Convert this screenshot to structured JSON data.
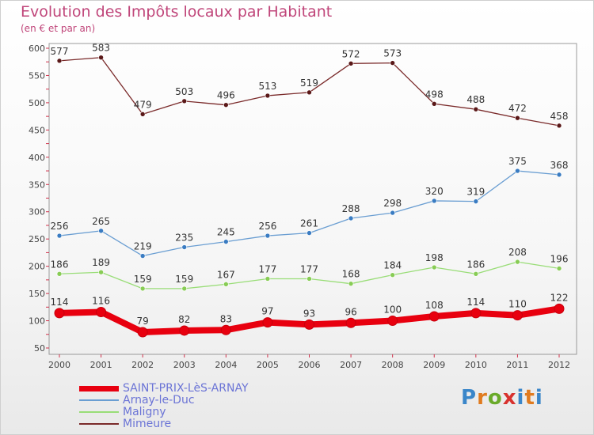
{
  "title": "Evolution des Impôts locaux par Habitant",
  "subtitle": "(en € et par an)",
  "brand": {
    "text": "Proxiti",
    "letter_colors": [
      "#3a86c9",
      "#e07b1f",
      "#6aaa2a",
      "#d8322e",
      "#3a86c9",
      "#e07b1f",
      "#3a86c9"
    ]
  },
  "chart_data": {
    "type": "line",
    "title": "Evolution des Impôts locaux par Habitant",
    "subtitle": "(en € et par an)",
    "x": [
      "2000",
      "2001",
      "2002",
      "2003",
      "2004",
      "2005",
      "2006",
      "2007",
      "2008",
      "2009",
      "2010",
      "2011",
      "2012"
    ],
    "y_ticks": [
      50,
      100,
      150,
      200,
      250,
      300,
      350,
      400,
      450,
      500,
      550,
      600
    ],
    "ylim": [
      50,
      600
    ],
    "grid": false,
    "legend_position": "bottom-left",
    "series": [
      {
        "name": "SAINT-PRIX-LèS-ARNAY",
        "color": "#e8000f",
        "values": [
          114,
          116,
          79,
          82,
          83,
          97,
          93,
          96,
          100,
          108,
          114,
          110,
          122
        ]
      },
      {
        "name": "Arnay-le-Duc",
        "color": "#6a9ed2",
        "values": [
          256,
          265,
          219,
          235,
          245,
          256,
          261,
          288,
          298,
          320,
          319,
          375,
          368
        ]
      },
      {
        "name": "Maligny",
        "color": "#99dd77",
        "values": [
          186,
          189,
          159,
          159,
          167,
          177,
          177,
          168,
          184,
          198,
          186,
          208,
          196
        ]
      },
      {
        "name": "Mimeure",
        "color": "#7a2a2a",
        "values": [
          577,
          583,
          479,
          503,
          496,
          513,
          519,
          572,
          573,
          498,
          488,
          472,
          458
        ]
      }
    ]
  }
}
